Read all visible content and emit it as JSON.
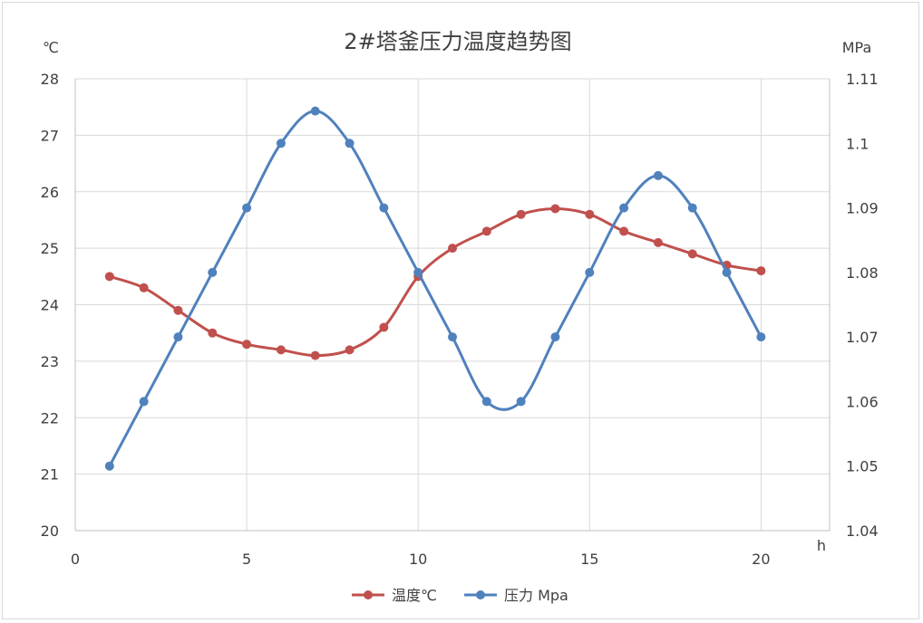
{
  "chart_data": {
    "type": "line",
    "title": "2#塔釜压力温度趋势图",
    "xlabel": "h",
    "ylabel_left": "℃",
    "ylabel_right": "MPa",
    "xlim": [
      0,
      22
    ],
    "xticks": [
      0,
      5,
      10,
      15,
      20
    ],
    "ylim_left": [
      20,
      28
    ],
    "yticks_left": [
      20,
      21,
      22,
      23,
      24,
      25,
      26,
      27,
      28
    ],
    "ylim_right": [
      1.04,
      1.11
    ],
    "yticks_right": [
      "1.04",
      "1.05",
      "1.06",
      "1.07",
      "1.08",
      "1.09",
      "1.1",
      "1.11"
    ],
    "grid": true,
    "legend_position": "bottom",
    "series": [
      {
        "name": "温度℃",
        "axis": "left",
        "color": "#c0504d",
        "x": [
          1,
          2,
          3,
          4,
          5,
          6,
          7,
          8,
          9,
          10,
          11,
          12,
          13,
          14,
          15,
          16,
          17,
          18,
          19,
          20
        ],
        "values": [
          24.5,
          24.3,
          23.9,
          23.5,
          23.3,
          23.2,
          23.1,
          23.2,
          23.6,
          24.5,
          25.0,
          25.3,
          25.6,
          25.7,
          25.6,
          25.3,
          25.1,
          24.9,
          24.7,
          24.6
        ]
      },
      {
        "name": "压力 Mpa",
        "axis": "right",
        "color": "#4f81bd",
        "x": [
          1,
          2,
          3,
          4,
          5,
          6,
          7,
          8,
          9,
          10,
          11,
          12,
          13,
          14,
          15,
          16,
          17,
          18,
          19,
          20
        ],
        "values": [
          1.05,
          1.06,
          1.07,
          1.08,
          1.09,
          1.1,
          1.105,
          1.1,
          1.09,
          1.08,
          1.07,
          1.06,
          1.06,
          1.07,
          1.08,
          1.09,
          1.095,
          1.09,
          1.08,
          1.07
        ]
      }
    ]
  }
}
